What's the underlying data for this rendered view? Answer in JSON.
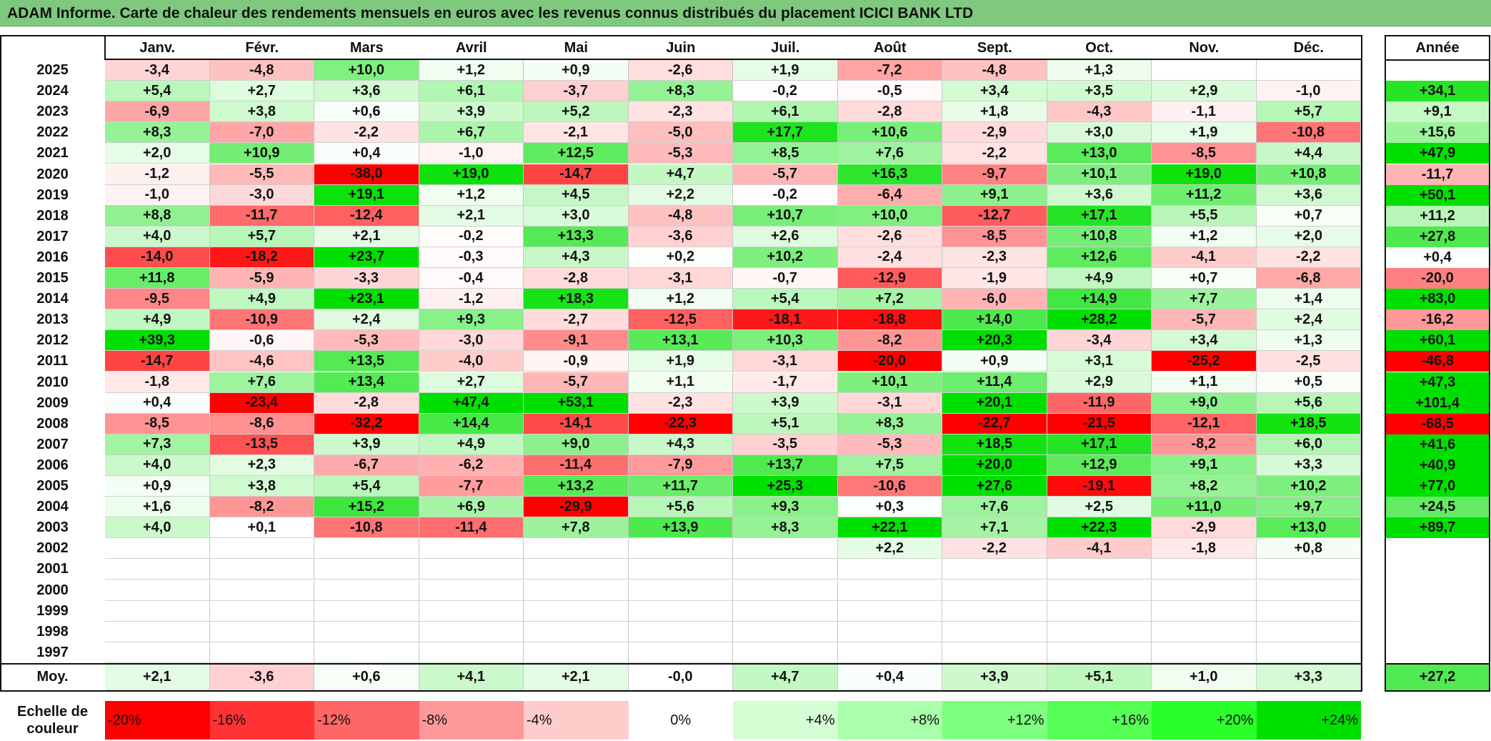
{
  "title": "ADAM Informe. Carte de chaleur des rendements mensuels en euros avec les revenus connus distribués du placement ICICI BANK LTD",
  "chart_data": {
    "type": "heatmap",
    "title": "ADAM Informe. Carte de chaleur des rendements mensuels en euros avec les revenus connus distribués du placement ICICI BANK LTD",
    "columns": [
      "Janv.",
      "Févr.",
      "Mars",
      "Avril",
      "Mai",
      "Juin",
      "Juil.",
      "Août",
      "Sept.",
      "Oct.",
      "Nov.",
      "Déc."
    ],
    "year_column_label": "Année",
    "rows": [
      {
        "year": "2025",
        "values": [
          "-3,4",
          "-4,8",
          "+10,0",
          "+1,2",
          "+0,9",
          "-2,6",
          "+1,9",
          "-7,2",
          "-4,8",
          "+1,3",
          "",
          ""
        ],
        "annual": ""
      },
      {
        "year": "2024",
        "values": [
          "+5,4",
          "+2,7",
          "+3,6",
          "+6,1",
          "-3,7",
          "+8,3",
          "-0,2",
          "-0,5",
          "+3,4",
          "+3,5",
          "+2,9",
          "-1,0"
        ],
        "annual": "+34,1"
      },
      {
        "year": "2023",
        "values": [
          "-6,9",
          "+3,8",
          "+0,6",
          "+3,9",
          "+5,2",
          "-2,3",
          "+6,1",
          "-2,8",
          "+1,8",
          "-4,3",
          "-1,1",
          "+5,7"
        ],
        "annual": "+9,1"
      },
      {
        "year": "2022",
        "values": [
          "+8,3",
          "-7,0",
          "-2,2",
          "+6,7",
          "-2,1",
          "-5,0",
          "+17,7",
          "+10,6",
          "-2,9",
          "+3,0",
          "+1,9",
          "-10,8"
        ],
        "annual": "+15,6"
      },
      {
        "year": "2021",
        "values": [
          "+2,0",
          "+10,9",
          "+0,4",
          "-1,0",
          "+12,5",
          "-5,3",
          "+8,5",
          "+7,6",
          "-2,2",
          "+13,0",
          "-8,5",
          "+4,4"
        ],
        "annual": "+47,9"
      },
      {
        "year": "2020",
        "values": [
          "-1,2",
          "-5,5",
          "-38,0",
          "+19,0",
          "-14,7",
          "+4,7",
          "-5,7",
          "+16,3",
          "-9,7",
          "+10,1",
          "+19,0",
          "+10,8"
        ],
        "annual": "-11,7"
      },
      {
        "year": "2019",
        "values": [
          "-1,0",
          "-3,0",
          "+19,1",
          "+1,2",
          "+4,5",
          "+2,2",
          "-0,2",
          "-6,4",
          "+9,1",
          "+3,6",
          "+11,2",
          "+3,6"
        ],
        "annual": "+50,1"
      },
      {
        "year": "2018",
        "values": [
          "+8,8",
          "-11,7",
          "-12,4",
          "+2,1",
          "+3,0",
          "-4,8",
          "+10,7",
          "+10,0",
          "-12,7",
          "+17,1",
          "+5,5",
          "+0,7"
        ],
        "annual": "+11,2"
      },
      {
        "year": "2017",
        "values": [
          "+4,0",
          "+5,7",
          "+2,1",
          "-0,2",
          "+13,3",
          "-3,6",
          "+2,6",
          "-2,6",
          "-8,5",
          "+10,8",
          "+1,2",
          "+2,0"
        ],
        "annual": "+27,8"
      },
      {
        "year": "2016",
        "values": [
          "-14,0",
          "-18,2",
          "+23,7",
          "-0,3",
          "+4,3",
          "+0,2",
          "+10,2",
          "-2,4",
          "-2,3",
          "+12,6",
          "-4,1",
          "-2,2"
        ],
        "annual": "+0,4"
      },
      {
        "year": "2015",
        "values": [
          "+11,8",
          "-5,9",
          "-3,3",
          "-0,4",
          "-2,8",
          "-3,1",
          "-0,7",
          "-12,9",
          "-1,9",
          "+4,9",
          "+0,7",
          "-6,8"
        ],
        "annual": "-20,0"
      },
      {
        "year": "2014",
        "values": [
          "-9,5",
          "+4,9",
          "+23,1",
          "-1,2",
          "+18,3",
          "+1,2",
          "+5,4",
          "+7,2",
          "-6,0",
          "+14,9",
          "+7,7",
          "+1,4"
        ],
        "annual": "+83,0"
      },
      {
        "year": "2013",
        "values": [
          "+4,9",
          "-10,9",
          "+2,4",
          "+9,3",
          "-2,7",
          "-12,5",
          "-18,1",
          "-18,8",
          "+14,0",
          "+28,2",
          "-5,7",
          "+2,4"
        ],
        "annual": "-16,2"
      },
      {
        "year": "2012",
        "values": [
          "+39,3",
          "-0,6",
          "-5,3",
          "-3,0",
          "-9,1",
          "+13,1",
          "+10,3",
          "-8,2",
          "+20,3",
          "-3,4",
          "+3,4",
          "+1,3"
        ],
        "annual": "+60,1"
      },
      {
        "year": "2011",
        "values": [
          "-14,7",
          "-4,6",
          "+13,5",
          "-4,0",
          "-0,9",
          "+1,9",
          "-3,1",
          "-20,0",
          "+0,9",
          "+3,1",
          "-25,2",
          "-2,5"
        ],
        "annual": "-46,8"
      },
      {
        "year": "2010",
        "values": [
          "-1,8",
          "+7,6",
          "+13,4",
          "+2,7",
          "-5,7",
          "+1,1",
          "-1,7",
          "+10,1",
          "+11,4",
          "+2,9",
          "+1,1",
          "+0,5"
        ],
        "annual": "+47,3"
      },
      {
        "year": "2009",
        "values": [
          "+0,4",
          "-23,4",
          "-2,8",
          "+47,4",
          "+53,1",
          "-2,3",
          "+3,9",
          "-3,1",
          "+20,1",
          "-11,9",
          "+9,0",
          "+5,6"
        ],
        "annual": "+101,4"
      },
      {
        "year": "2008",
        "values": [
          "-8,5",
          "-8,6",
          "-32,2",
          "+14,4",
          "-14,1",
          "-22,3",
          "+5,1",
          "+8,3",
          "-22,7",
          "-21,5",
          "-12,1",
          "+18,5"
        ],
        "annual": "-68,5"
      },
      {
        "year": "2007",
        "values": [
          "+7,3",
          "-13,5",
          "+3,9",
          "+4,9",
          "+9,0",
          "+4,3",
          "-3,5",
          "-5,3",
          "+18,5",
          "+17,1",
          "-8,2",
          "+6,0"
        ],
        "annual": "+41,6"
      },
      {
        "year": "2006",
        "values": [
          "+4,0",
          "+2,3",
          "-6,7",
          "-6,2",
          "-11,4",
          "-7,9",
          "+13,7",
          "+7,5",
          "+20,0",
          "+12,9",
          "+9,1",
          "+3,3"
        ],
        "annual": "+40,9"
      },
      {
        "year": "2005",
        "values": [
          "+0,9",
          "+3,8",
          "+5,4",
          "-7,7",
          "+13,2",
          "+11,7",
          "+25,3",
          "-10,6",
          "+27,6",
          "-19,1",
          "+8,2",
          "+10,2"
        ],
        "annual": "+77,0"
      },
      {
        "year": "2004",
        "values": [
          "+1,6",
          "-8,2",
          "+15,2",
          "+6,9",
          "-29,9",
          "+5,6",
          "+9,3",
          "+0,3",
          "+7,6",
          "+2,5",
          "+11,0",
          "+9,7"
        ],
        "annual": "+24,5"
      },
      {
        "year": "2003",
        "values": [
          "+4,0",
          "+0,1",
          "-10,8",
          "-11,4",
          "+7,8",
          "+13,9",
          "+8,3",
          "+22,1",
          "+7,1",
          "+22,3",
          "-2,9",
          "+13,0"
        ],
        "annual": "+89,7"
      },
      {
        "year": "2002",
        "values": [
          "",
          "",
          "",
          "",
          "",
          "",
          "",
          "+2,2",
          "-2,2",
          "-4,1",
          "-1,8",
          "+0,8"
        ],
        "annual": ""
      },
      {
        "year": "2001",
        "values": [
          "",
          "",
          "",
          "",
          "",
          "",
          "",
          "",
          "",
          "",
          "",
          ""
        ],
        "annual": ""
      },
      {
        "year": "2000",
        "values": [
          "",
          "",
          "",
          "",
          "",
          "",
          "",
          "",
          "",
          "",
          "",
          ""
        ],
        "annual": ""
      },
      {
        "year": "1999",
        "values": [
          "",
          "",
          "",
          "",
          "",
          "",
          "",
          "",
          "",
          "",
          "",
          ""
        ],
        "annual": ""
      },
      {
        "year": "1998",
        "values": [
          "",
          "",
          "",
          "",
          "",
          "",
          "",
          "",
          "",
          "",
          "",
          ""
        ],
        "annual": ""
      },
      {
        "year": "1997",
        "values": [
          "",
          "",
          "",
          "",
          "",
          "",
          "",
          "",
          "",
          "",
          "",
          ""
        ],
        "annual": ""
      }
    ],
    "average": {
      "label": "Moy.",
      "values": [
        "+2,1",
        "-3,6",
        "+0,6",
        "+4,1",
        "+2,1",
        "-0,0",
        "+4,7",
        "+0,4",
        "+3,9",
        "+5,1",
        "+1,0",
        "+3,3"
      ],
      "annual": "+27,2"
    },
    "color_scale": {
      "label": "Echelle de couleur",
      "stops": [
        {
          "label": "-20%",
          "value": -20,
          "color": "#ff0000"
        },
        {
          "label": "-16%",
          "value": -16,
          "color": "#ff3333"
        },
        {
          "label": "-12%",
          "value": -12,
          "color": "#ff6666"
        },
        {
          "label": "-8%",
          "value": -8,
          "color": "#ff9999"
        },
        {
          "label": "-4%",
          "value": -4,
          "color": "#ffcccc"
        },
        {
          "label": "0%",
          "value": 0,
          "color": "#ffffff"
        },
        {
          "label": "+4%",
          "value": 4,
          "color": "#d4ffd4"
        },
        {
          "label": "+8%",
          "value": 8,
          "color": "#aaffaa"
        },
        {
          "label": "+12%",
          "value": 12,
          "color": "#7fff7f"
        },
        {
          "label": "+16%",
          "value": 16,
          "color": "#55ff55"
        },
        {
          "label": "+20%",
          "value": 20,
          "color": "#2aff2a"
        },
        {
          "label": "+24%",
          "value": 24,
          "color": "#00e000"
        }
      ]
    },
    "colors": {
      "title_bar": "#7fc97f",
      "negative_max": "#ff0000",
      "positive_max": "#00e000",
      "neutral": "#ffffff"
    }
  }
}
